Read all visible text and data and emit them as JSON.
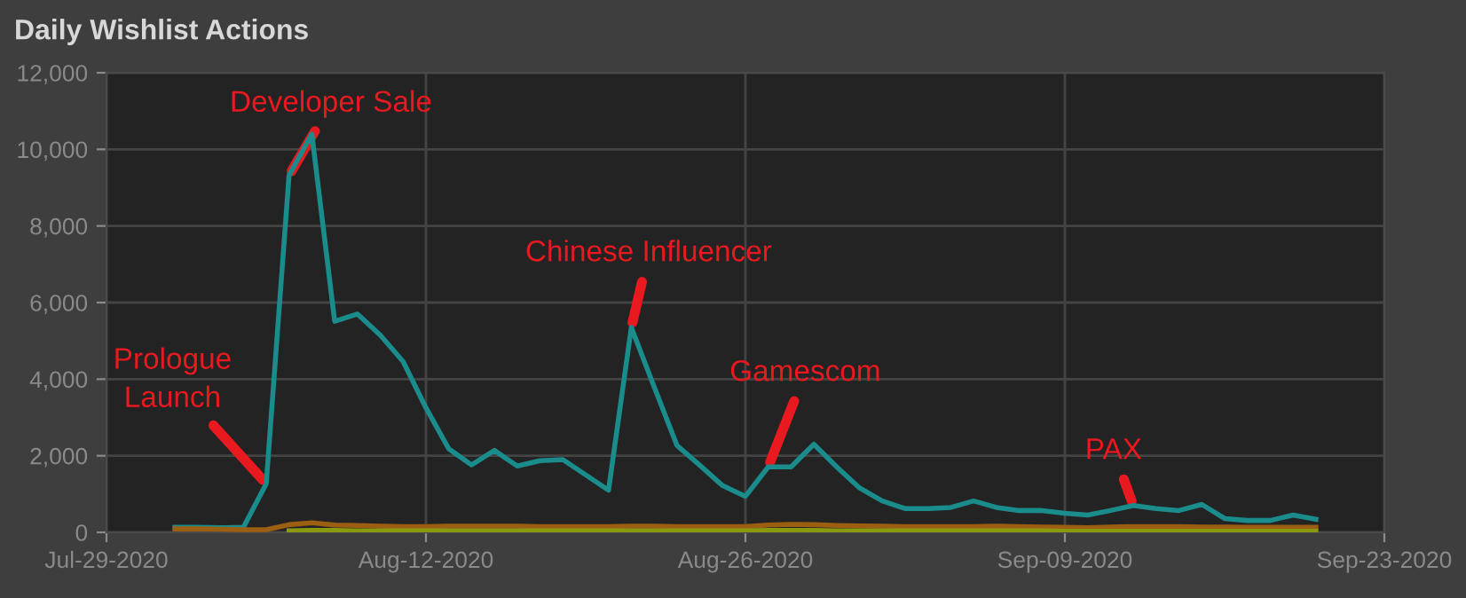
{
  "chart_data": {
    "type": "line",
    "title": "Daily Wishlist Actions",
    "xlim": [
      "2020-07-29",
      "2020-09-23"
    ],
    "xticks": [
      {
        "value": "2020-07-29",
        "label": "Jul-29-2020"
      },
      {
        "value": "2020-08-12",
        "label": "Aug-12-2020"
      },
      {
        "value": "2020-08-26",
        "label": "Aug-26-2020"
      },
      {
        "value": "2020-09-09",
        "label": "Sep-09-2020"
      },
      {
        "value": "2020-09-23",
        "label": "Sep-23-2020"
      }
    ],
    "ylim": [
      0,
      12000
    ],
    "yticks": [
      {
        "value": 0,
        "label": "0"
      },
      {
        "value": 2000,
        "label": "2,000"
      },
      {
        "value": 4000,
        "label": "4,000"
      },
      {
        "value": 6000,
        "label": "6,000"
      },
      {
        "value": 8000,
        "label": "8,000"
      },
      {
        "value": 10000,
        "label": "10,000"
      },
      {
        "value": 12000,
        "label": "12,000"
      }
    ],
    "grid": true,
    "marker": "none",
    "line_style": "solid",
    "series": [
      {
        "color": "#1a8c8c",
        "x": [
          "2020-08-01",
          "2020-08-02",
          "2020-08-03",
          "2020-08-04",
          "2020-08-05",
          "2020-08-06",
          "2020-08-07",
          "2020-08-08",
          "2020-08-09",
          "2020-08-10",
          "2020-08-11",
          "2020-08-12",
          "2020-08-13",
          "2020-08-14",
          "2020-08-15",
          "2020-08-16",
          "2020-08-17",
          "2020-08-18",
          "2020-08-19",
          "2020-08-20",
          "2020-08-21",
          "2020-08-22",
          "2020-08-23",
          "2020-08-24",
          "2020-08-25",
          "2020-08-26",
          "2020-08-27",
          "2020-08-28",
          "2020-08-29",
          "2020-08-30",
          "2020-08-31",
          "2020-09-01",
          "2020-09-02",
          "2020-09-03",
          "2020-09-04",
          "2020-09-05",
          "2020-09-06",
          "2020-09-07",
          "2020-09-08",
          "2020-09-09",
          "2020-09-10",
          "2020-09-11",
          "2020-09-12",
          "2020-09-13",
          "2020-09-14",
          "2020-09-15",
          "2020-09-16",
          "2020-09-17",
          "2020-09-18",
          "2020-09-19",
          "2020-09-20"
        ],
        "values": [
          130,
          130,
          120,
          130,
          1270,
          9320,
          10400,
          5510,
          5700,
          5150,
          4460,
          3250,
          2180,
          1760,
          2140,
          1730,
          1870,
          1900,
          1500,
          1100,
          5350,
          3800,
          2270,
          1750,
          1220,
          940,
          1710,
          1710,
          2300,
          1710,
          1160,
          820,
          620,
          620,
          650,
          820,
          650,
          570,
          570,
          500,
          450,
          570,
          700,
          620,
          570,
          730,
          360,
          310,
          310,
          450,
          340
        ]
      },
      {
        "color": "#9c5e10",
        "x": [
          "2020-08-01",
          "2020-08-02",
          "2020-08-03",
          "2020-08-04",
          "2020-08-05",
          "2020-08-06",
          "2020-08-07",
          "2020-08-08",
          "2020-08-09",
          "2020-08-10",
          "2020-08-11",
          "2020-08-12",
          "2020-08-13",
          "2020-08-14",
          "2020-08-15",
          "2020-08-16",
          "2020-08-17",
          "2020-08-18",
          "2020-08-19",
          "2020-08-20",
          "2020-08-21",
          "2020-08-22",
          "2020-08-23",
          "2020-08-24",
          "2020-08-25",
          "2020-08-26",
          "2020-08-27",
          "2020-08-28",
          "2020-08-29",
          "2020-08-30",
          "2020-08-31",
          "2020-09-01",
          "2020-09-02",
          "2020-09-03",
          "2020-09-04",
          "2020-09-05",
          "2020-09-06",
          "2020-09-07",
          "2020-09-08",
          "2020-09-09",
          "2020-09-10",
          "2020-09-11",
          "2020-09-12",
          "2020-09-13",
          "2020-09-14",
          "2020-09-15",
          "2020-09-16",
          "2020-09-17",
          "2020-09-18",
          "2020-09-19",
          "2020-09-20"
        ],
        "values": [
          90,
          90,
          80,
          70,
          70,
          200,
          250,
          190,
          180,
          160,
          150,
          150,
          160,
          160,
          160,
          160,
          150,
          150,
          150,
          150,
          160,
          160,
          150,
          150,
          150,
          150,
          190,
          210,
          200,
          180,
          170,
          160,
          150,
          150,
          150,
          150,
          160,
          150,
          140,
          130,
          120,
          140,
          150,
          150,
          150,
          140,
          140,
          130,
          130,
          130,
          130
        ]
      },
      {
        "color": "#8a9a10",
        "x": [
          "2020-08-06",
          "2020-08-07",
          "2020-08-08",
          "2020-08-09",
          "2020-08-10",
          "2020-08-11",
          "2020-08-12",
          "2020-08-13",
          "2020-08-14",
          "2020-08-15",
          "2020-08-16",
          "2020-08-17",
          "2020-08-18",
          "2020-08-19",
          "2020-08-20",
          "2020-08-21",
          "2020-08-22",
          "2020-08-23",
          "2020-08-24",
          "2020-08-25",
          "2020-08-26",
          "2020-08-27",
          "2020-08-28",
          "2020-08-29",
          "2020-08-30",
          "2020-08-31",
          "2020-09-01",
          "2020-09-02",
          "2020-09-03",
          "2020-09-04",
          "2020-09-05",
          "2020-09-06",
          "2020-09-07",
          "2020-09-08",
          "2020-09-09",
          "2020-09-10",
          "2020-09-11",
          "2020-09-12",
          "2020-09-13",
          "2020-09-14",
          "2020-09-15",
          "2020-09-16",
          "2020-09-17",
          "2020-09-18",
          "2020-09-19",
          "2020-09-20"
        ],
        "values": [
          40,
          50,
          50,
          40,
          40,
          40,
          40,
          40,
          40,
          40,
          40,
          40,
          40,
          40,
          40,
          40,
          40,
          40,
          40,
          40,
          40,
          50,
          50,
          50,
          40,
          40,
          40,
          40,
          40,
          40,
          40,
          40,
          40,
          40,
          30,
          30,
          30,
          30,
          30,
          30,
          30,
          30,
          30,
          30,
          30,
          30
        ]
      }
    ],
    "annotations": [
      {
        "text": "Prologue\nLaunch",
        "x": "2020-08-05",
        "y": 1270
      },
      {
        "text": "Developer Sale",
        "x": "2020-08-06",
        "y": 9320
      },
      {
        "text": "Chinese Influencer",
        "x": "2020-08-21",
        "y": 5350
      },
      {
        "text": "Gamescom",
        "x": "2020-08-27",
        "y": 1710
      },
      {
        "text": "PAX",
        "x": "2020-09-12",
        "y": 700
      }
    ]
  }
}
